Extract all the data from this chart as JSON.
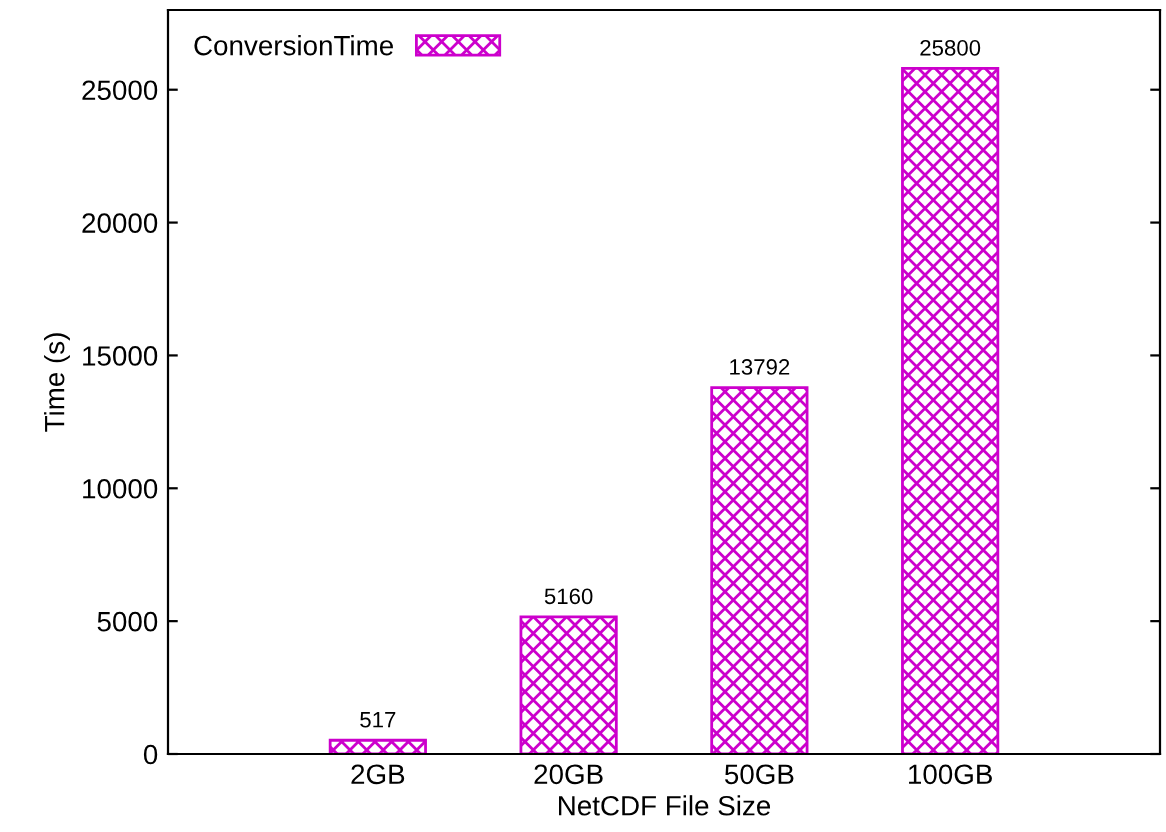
{
  "chart_data": {
    "type": "bar",
    "xlabel": "NetCDF File Size",
    "ylabel": "Time (s)",
    "categories": [
      "2GB",
      "20GB",
      "50GB",
      "100GB"
    ],
    "series": [
      {
        "name": "ConversionTime",
        "color": "#cc00cc",
        "values": [
          517,
          5160,
          13792,
          25800
        ]
      }
    ],
    "ylim": [
      0,
      28000
    ],
    "yticks": [
      0,
      5000,
      10000,
      15000,
      20000,
      25000
    ],
    "data_labels": true,
    "legend": "top left",
    "grid": false
  }
}
